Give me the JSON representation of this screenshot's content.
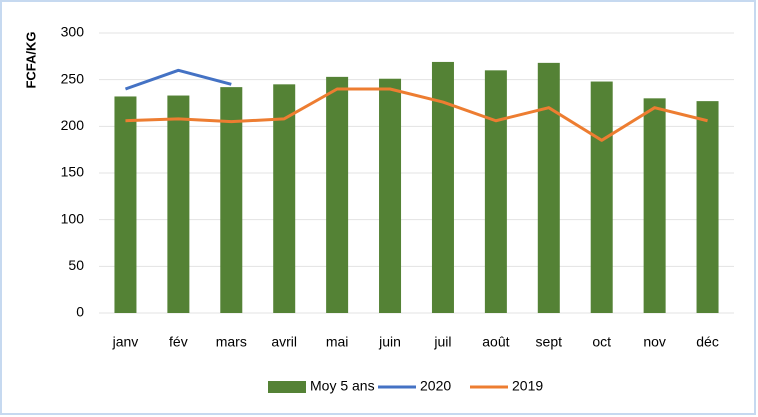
{
  "chart_data": {
    "type": "combo",
    "y_label": "FCFA/KG",
    "categories": [
      "janv",
      "fév",
      "mars",
      "avril",
      "mai",
      "juin",
      "juil",
      "août",
      "sept",
      "oct",
      "nov",
      "déc"
    ],
    "series": [
      {
        "name": "Moy 5 ans",
        "type": "bar",
        "color": "#548235",
        "values": [
          232,
          233,
          242,
          245,
          253,
          251,
          269,
          260,
          268,
          248,
          230,
          227
        ]
      },
      {
        "name": "2020",
        "type": "line",
        "color": "#4472c4",
        "values": [
          240,
          260,
          245,
          null,
          null,
          null,
          null,
          null,
          null,
          null,
          null,
          null
        ]
      },
      {
        "name": "2019",
        "type": "line",
        "color": "#ed7d31",
        "values": [
          206,
          208,
          205,
          208,
          240,
          240,
          226,
          206,
          220,
          185,
          220,
          206
        ]
      }
    ],
    "ylim": [
      0,
      300
    ],
    "yticks": [
      0,
      50,
      100,
      150,
      200,
      250,
      300
    ],
    "grid": true,
    "legend": "bottom"
  }
}
